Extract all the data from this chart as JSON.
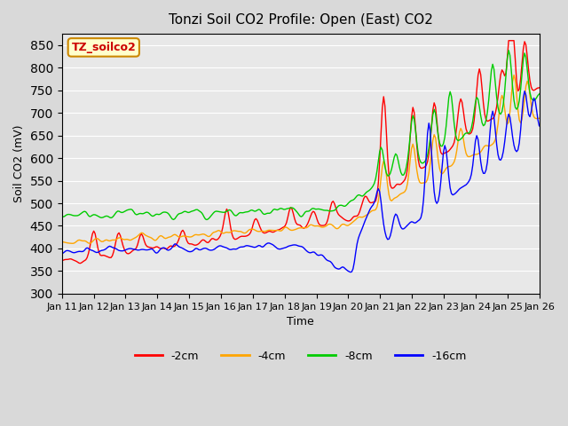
{
  "title": "Tonzi Soil CO2 Profile: Open (East) CO2",
  "xlabel": "Time",
  "ylabel": "Soil CO2 (mV)",
  "ylim": [
    300,
    875
  ],
  "yticks": [
    300,
    350,
    400,
    450,
    500,
    550,
    600,
    650,
    700,
    750,
    800,
    850
  ],
  "legend_labels": [
    "-2cm",
    "-4cm",
    "-8cm",
    "-16cm"
  ],
  "legend_colors": [
    "#ff0000",
    "#ffa500",
    "#00cc00",
    "#0000ff"
  ],
  "label_box_text": "TZ_soilco2",
  "label_box_facecolor": "#ffffcc",
  "label_box_edgecolor": "#cc8800",
  "label_box_textcolor": "#cc0000",
  "bg_color": "#d9d9d9",
  "plot_bg_color": "#e8e8e8",
  "n_points": 360,
  "x_start": 11,
  "x_end": 26,
  "xtick_positions": [
    11,
    12,
    13,
    14,
    15,
    16,
    17,
    18,
    19,
    20,
    21,
    22,
    23,
    24,
    25,
    26
  ],
  "xtick_labels": [
    "Jan 11",
    "Jan 12",
    "Jan 13",
    "Jan 14",
    "Jan 15",
    "Jan 16",
    "Jan 17",
    "Jan 18",
    "Jan 19",
    "Jan 20",
    "Jan 21",
    "Jan 22",
    "Jan 23",
    "Jan 24",
    "Jan 25",
    "Jan 26"
  ]
}
